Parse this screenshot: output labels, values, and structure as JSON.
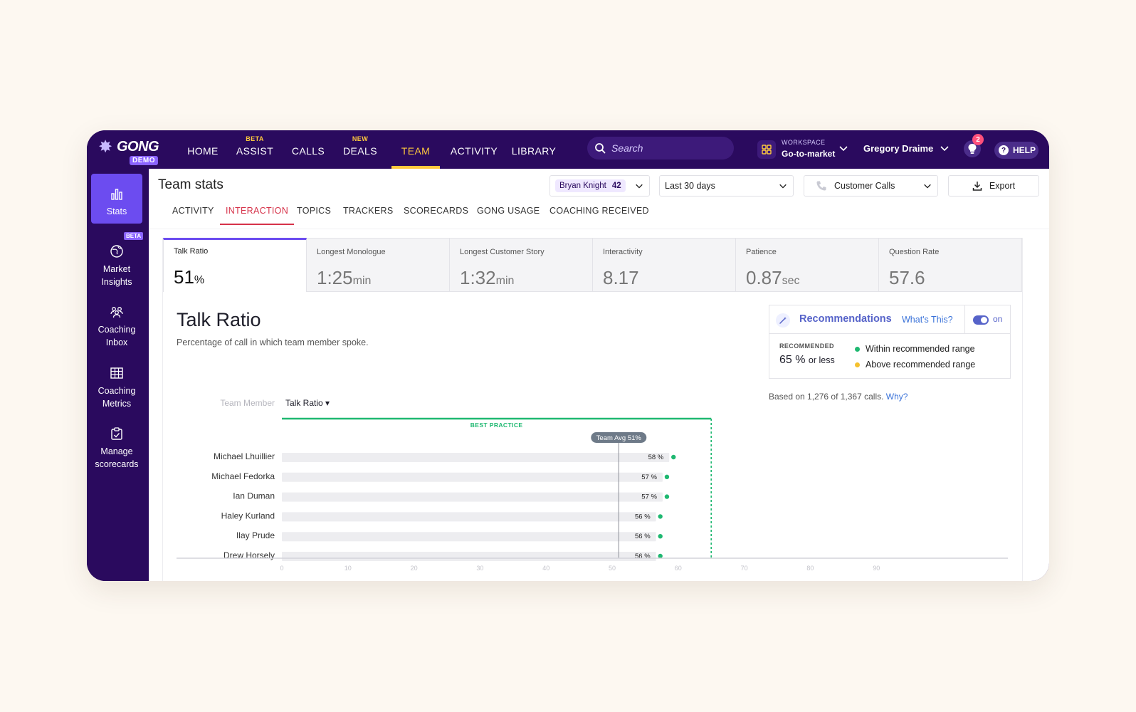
{
  "brand": {
    "name": "GONG",
    "tag": "DEMO"
  },
  "nav": {
    "items": [
      {
        "label": "HOME",
        "super": ""
      },
      {
        "label": "ASSIST",
        "super": "BETA"
      },
      {
        "label": "CALLS",
        "super": ""
      },
      {
        "label": "DEALS",
        "super": "NEW"
      },
      {
        "label": "TEAM",
        "super": ""
      },
      {
        "label": "ACTIVITY",
        "super": ""
      },
      {
        "label": "LIBRARY",
        "super": ""
      }
    ],
    "search_placeholder": "Search",
    "workspace_label": "WORKSPACE",
    "workspace_value": "Go-to-market",
    "user": "Gregory Draime",
    "notifications": "2",
    "help": "HELP"
  },
  "sidebar": {
    "beta": "BETA",
    "items": [
      {
        "label": "Stats"
      },
      {
        "label": "Market Insights"
      },
      {
        "label": "Coaching Inbox"
      },
      {
        "label": "Coaching Metrics"
      },
      {
        "label": "Manage scorecards"
      }
    ]
  },
  "page": {
    "title": "Team stats",
    "filters": {
      "member": "Bryan Knight",
      "member_count": "42",
      "range": "Last 30 days",
      "call_type": "Customer Calls",
      "export": "Export"
    },
    "tabs": [
      "ACTIVITY",
      "INTERACTION",
      "TOPICS",
      "TRACKERS",
      "SCORECARDS",
      "GONG USAGE",
      "COACHING RECEIVED"
    ]
  },
  "metrics": [
    {
      "label": "Talk Ratio",
      "value": "51",
      "unit": "%"
    },
    {
      "label": "Longest Monologue",
      "value": "1:25",
      "unit": "min"
    },
    {
      "label": "Longest Customer Story",
      "value": "1:32",
      "unit": "min"
    },
    {
      "label": "Interactivity",
      "value": "8.17",
      "unit": ""
    },
    {
      "label": "Patience",
      "value": "0.87",
      "unit": "sec"
    },
    {
      "label": "Question Rate",
      "value": "57.6",
      "unit": ""
    }
  ],
  "section": {
    "title": "Talk Ratio",
    "description": "Percentage of call in which team member spoke."
  },
  "recommendations": {
    "title": "Recommendations",
    "whats_this": "What's This?",
    "toggle": "on",
    "recommended_label": "RECOMMENDED",
    "recommended_value": "65 %",
    "recommended_suffix": "or less",
    "legend_within": "Within recommended range",
    "legend_above": "Above recommended range",
    "footnote": "Based on 1,276 of 1,367 calls.",
    "why": "Why?"
  },
  "colors": {
    "nav_bg": "#2a0a5e",
    "accent_yellow": "#ffc93d",
    "active_tab": "#d63249",
    "within": "#1fb871",
    "above": "#f5c12e",
    "best_practice": "#1fb871"
  },
  "chart_data": {
    "type": "bar",
    "column_headers": [
      "Team Member",
      "Talk Ratio"
    ],
    "categories": [
      "Michael Lhuillier",
      "Michael Fedorka",
      "Ian Duman",
      "Haley Kurland",
      "Ilay Prude",
      "Drew Horsely"
    ],
    "values": [
      58,
      57,
      57,
      56,
      56,
      56
    ],
    "value_labels": [
      "58 %",
      "57 %",
      "57 %",
      "56 %",
      "56 %",
      "56 %"
    ],
    "team_avg": 51,
    "team_avg_label": "Team Avg 51%",
    "best_practice_max": 65,
    "best_practice_label": "BEST PRACTICE",
    "xlim": [
      0,
      100
    ],
    "xticks": [
      0,
      10,
      20,
      30,
      40,
      50,
      60,
      70,
      80,
      90
    ],
    "grid": false
  }
}
